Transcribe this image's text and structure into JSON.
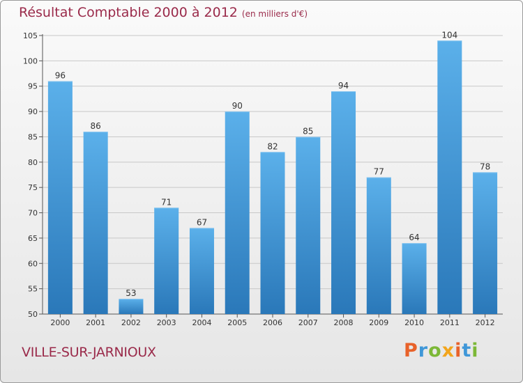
{
  "header": {
    "title": "Résultat Comptable 2000 à 2012",
    "subtitle": "(en milliers d'€)"
  },
  "footer": {
    "commune": "VILLE-SUR-JARNIOUX",
    "logo": "Proxiti",
    "logo_colors": [
      "#e8622a",
      "#3f97d8",
      "#7cb837",
      "#f2a51c",
      "#e8622a",
      "#3f97d8",
      "#7cb837"
    ]
  },
  "colors": {
    "bar": "#3f97d8",
    "bar_light": "#5bb0ea",
    "bar_dark": "#2a78b9",
    "title": "#9a2a4a"
  },
  "chart_data": {
    "type": "bar",
    "categories": [
      "2000",
      "2001",
      "2002",
      "2003",
      "2004",
      "2005",
      "2006",
      "2007",
      "2008",
      "2009",
      "2010",
      "2011",
      "2012"
    ],
    "values": [
      96,
      86,
      53,
      71,
      67,
      90,
      82,
      85,
      94,
      77,
      64,
      104,
      78
    ],
    "ylim": [
      50,
      105
    ],
    "yticks": [
      50,
      55,
      60,
      65,
      70,
      75,
      80,
      85,
      90,
      95,
      100,
      105
    ],
    "grid": true,
    "title": "Résultat Comptable 2000 à 2012",
    "xlabel": "",
    "ylabel": ""
  }
}
